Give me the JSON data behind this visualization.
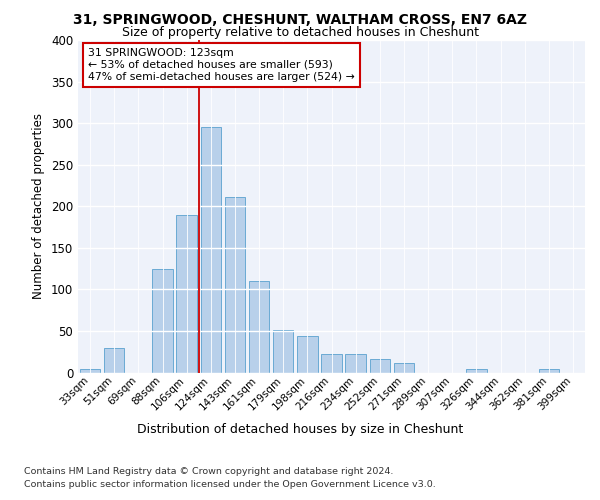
{
  "title1": "31, SPRINGWOOD, CHESHUNT, WALTHAM CROSS, EN7 6AZ",
  "title2": "Size of property relative to detached houses in Cheshunt",
  "xlabel": "Distribution of detached houses by size in Cheshunt",
  "ylabel": "Number of detached properties",
  "footer1": "Contains HM Land Registry data © Crown copyright and database right 2024.",
  "footer2": "Contains public sector information licensed under the Open Government Licence v3.0.",
  "annotation_line1": "31 SPRINGWOOD: 123sqm",
  "annotation_line2": "← 53% of detached houses are smaller (593)",
  "annotation_line3": "47% of semi-detached houses are larger (524) →",
  "property_line_x": 5,
  "bar_color": "#b8d0ea",
  "bar_edge_color": "#6aaad4",
  "line_color": "#cc0000",
  "annotation_box_edge": "#cc0000",
  "background_color": "#eef2fa",
  "categories": [
    "33sqm",
    "51sqm",
    "69sqm",
    "88sqm",
    "106sqm",
    "124sqm",
    "143sqm",
    "161sqm",
    "179sqm",
    "198sqm",
    "216sqm",
    "234sqm",
    "252sqm",
    "271sqm",
    "289sqm",
    "307sqm",
    "326sqm",
    "344sqm",
    "362sqm",
    "381sqm",
    "399sqm"
  ],
  "values": [
    4,
    30,
    0,
    124,
    190,
    295,
    211,
    110,
    51,
    44,
    22,
    22,
    16,
    11,
    0,
    0,
    4,
    0,
    0,
    4,
    0
  ],
  "ylim": [
    0,
    400
  ],
  "yticks": [
    0,
    50,
    100,
    150,
    200,
    250,
    300,
    350,
    400
  ]
}
